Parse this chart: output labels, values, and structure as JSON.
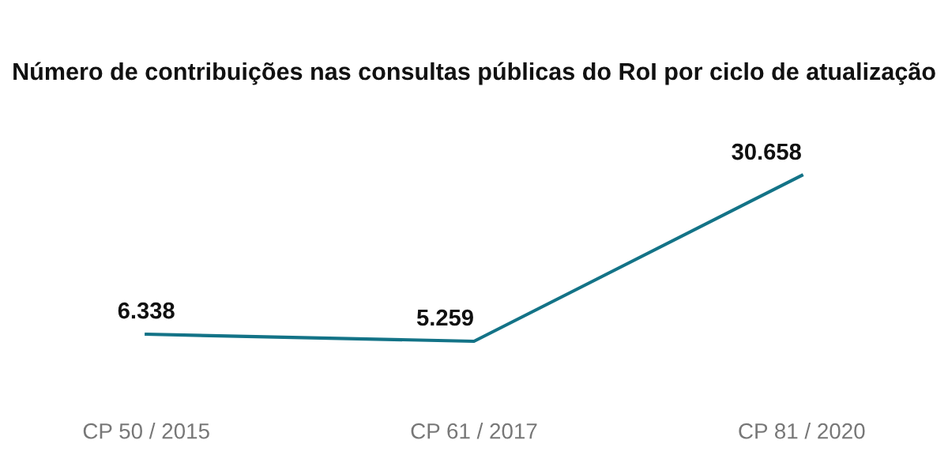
{
  "chart_data": {
    "type": "line",
    "title": "Número de contribuições nas consultas públicas do RoI por ciclo de atualização",
    "categories": [
      "CP 50 / 2015",
      "CP 61 / 2017",
      "CP 81 / 2020"
    ],
    "series": [
      {
        "color": "#137387",
        "values": [
          6338,
          5259,
          30658
        ],
        "value_labels": [
          "6.338",
          "5.259",
          "30.658"
        ]
      }
    ],
    "tick_labels": "x",
    "grid": false,
    "legend": false,
    "marker": "none",
    "line_style": "solid"
  }
}
